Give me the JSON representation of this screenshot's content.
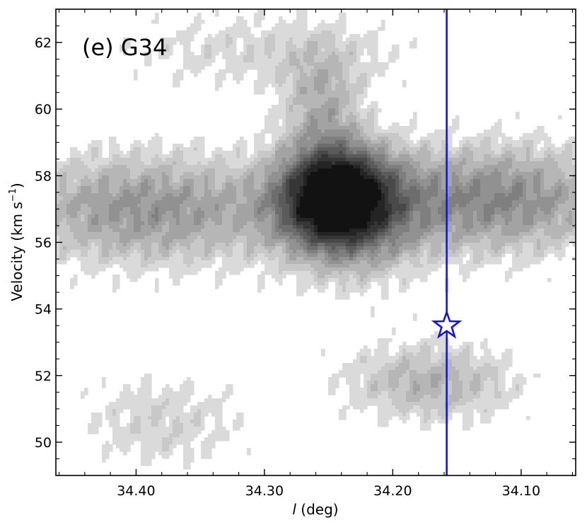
{
  "chart_data": {
    "type": "heatmap",
    "title": "",
    "panel_label": "(e) G34",
    "xlabel_italic": "l",
    "xlabel_rest": " (deg)",
    "ylabel": "Velocity (km s",
    "ylabel_unit_exp": "−1",
    "ylabel_close": ")",
    "x_reversed": true,
    "xlim": [
      34.4625,
      34.0575
    ],
    "ylim": [
      49.0,
      63.0
    ],
    "x_ticks": [
      34.4,
      34.3,
      34.2,
      34.1
    ],
    "x_tick_labels": [
      "34.40",
      "34.30",
      "34.20",
      "34.10"
    ],
    "y_ticks": [
      50,
      52,
      54,
      56,
      58,
      60,
      62
    ],
    "y_tick_labels": [
      "50",
      "52",
      "54",
      "56",
      "58",
      "60",
      "62"
    ],
    "colormap": "gray-reversed",
    "filled_contour_levels": 12,
    "emission_components": [
      {
        "name": "",
        "x": 34.245,
        "y": 57.4,
        "sx": 0.03,
        "sy": 1.05,
        "amp": 0.95
      },
      {
        "name": "",
        "x": 34.23,
        "y": 56.6,
        "sx": 0.04,
        "sy": 1.4,
        "amp": 0.3
      },
      {
        "name": "",
        "x": 34.255,
        "y": 60.2,
        "sx": 0.022,
        "sy": 1.1,
        "amp": 0.3
      },
      {
        "name": "",
        "x": 34.39,
        "y": 57.0,
        "sx": 0.08,
        "sy": 1.25,
        "amp": 0.45
      },
      {
        "name": "",
        "x": 34.12,
        "y": 57.3,
        "sx": 0.07,
        "sy": 1.2,
        "amp": 0.5
      },
      {
        "name": "",
        "x": 34.17,
        "y": 51.8,
        "sx": 0.05,
        "sy": 0.9,
        "amp": 0.33
      },
      {
        "name": "",
        "x": 34.38,
        "y": 50.6,
        "sx": 0.05,
        "sy": 1.1,
        "amp": 0.2
      },
      {
        "name": "",
        "x": 34.3,
        "y": 61.8,
        "sx": 0.09,
        "sy": 0.9,
        "amp": 0.18
      }
    ],
    "vertical_line": {
      "x": 34.158,
      "color": "#1515d8"
    },
    "marker": {
      "shape": "star",
      "x": 34.158,
      "y": 53.5,
      "edge_color": "#1515d8",
      "face_color": "#ffffff"
    }
  }
}
